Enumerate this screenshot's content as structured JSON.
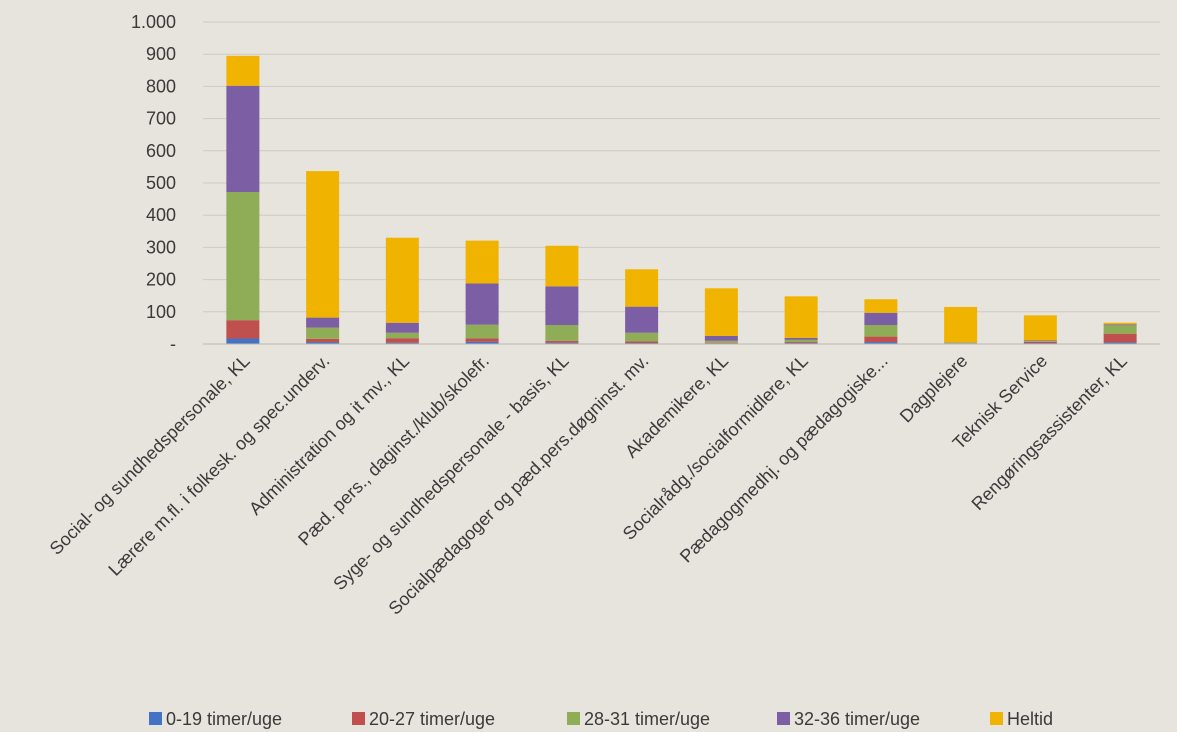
{
  "chart_data": {
    "type": "bar",
    "stacked": true,
    "title": "",
    "xlabel": "",
    "ylabel": "",
    "ylim": [
      0,
      1000
    ],
    "yticks": [
      0,
      100,
      200,
      300,
      400,
      500,
      600,
      700,
      800,
      900,
      1000
    ],
    "ytick_labels": [
      "-",
      "100",
      "200",
      "300",
      "400",
      "500",
      "600",
      "700",
      "800",
      "900",
      "1.000"
    ],
    "grid": true,
    "legend_position": "bottom",
    "categories": [
      "Social- og sundhedspersonale, KL",
      "Lærere m.fl. i folkesk. og spec.underv.",
      "Administration og it mv., KL",
      "Pæd. pers., daginst./klub/skolefr.",
      "Syge- og sundhedspersonale - basis, KL",
      "Socialpædagoger og pæd.pers.døgninst. mv.",
      "Akademikere, KL",
      "Socialrådg./socialformidlere, KL",
      "Pædagogmedhj. og pædagogiske...",
      "Dagplejere",
      "Teknisk Service",
      "Rengøringsassistenter, KL"
    ],
    "series": [
      {
        "name": "0-19 timer/uge",
        "color": "#4472c4",
        "values": [
          17,
          6,
          4,
          7,
          4,
          3,
          2,
          3,
          6,
          1,
          3,
          5
        ]
      },
      {
        "name": "20-27 timer/uge",
        "color": "#c0504d",
        "values": [
          57,
          10,
          14,
          10,
          6,
          5,
          2,
          3,
          17,
          1,
          4,
          27
        ]
      },
      {
        "name": "28-31 timer/uge",
        "color": "#8fac57",
        "values": [
          398,
          35,
          17,
          43,
          49,
          27,
          6,
          7,
          36,
          2,
          2,
          26
        ]
      },
      {
        "name": "32-36 timer/uge",
        "color": "#7b5ea3",
        "values": [
          330,
          31,
          31,
          128,
          120,
          81,
          15,
          6,
          38,
          1,
          2,
          3
        ]
      },
      {
        "name": "Heltid",
        "color": "#f0b400",
        "values": [
          93,
          455,
          264,
          133,
          126,
          116,
          148,
          129,
          42,
          110,
          78,
          5
        ]
      }
    ]
  }
}
